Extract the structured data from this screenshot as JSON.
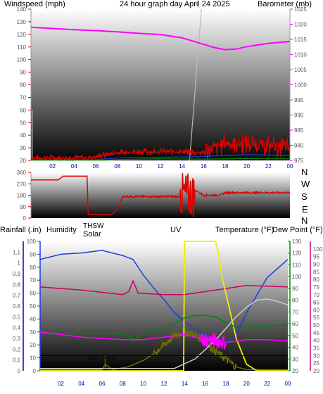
{
  "colors": {
    "wind": "#dd0000",
    "gust": "#dd0000",
    "baro": "#ff00ff",
    "dir": "#dd0000",
    "rain": "#0000cc",
    "hum": "#1a3fdd",
    "thsw": "#cccccc",
    "solar": "#6e6e00",
    "uv": "#eeee00",
    "temp": "#008800",
    "dew": "#cc0066",
    "xtick": "#0000aa"
  },
  "panel1": {
    "title": "24 hour graph day   April 24 2025",
    "left_label": "Windspeed (mph)",
    "right_label": "Barometer (mb)"
  },
  "panel2": {
    "compass": [
      "N",
      "W",
      "S",
      "E",
      "N"
    ]
  },
  "panel3": {
    "labels": {
      "rain": "Rainfall (.in)",
      "hum": "Humidity",
      "thsw": "THSW",
      "solar": "Solar",
      "uv": "UV",
      "temp": "Temperature (°F)",
      "dew": "Dew Point (°F)"
    },
    "annotation": "Sun Rise"
  },
  "chart_data": [
    {
      "type": "line",
      "title": "24 hour graph day   April 24 2025",
      "x_ticks": [
        "02",
        "04",
        "06",
        "08",
        "10",
        "12",
        "14",
        "16",
        "18",
        "20",
        "22",
        "00"
      ],
      "axes": {
        "left": {
          "label": "Windspeed (mph)",
          "ylim": [
            20,
            140
          ],
          "ticks": [
            20,
            30,
            40,
            50,
            60,
            70,
            80,
            90,
            100,
            110,
            120,
            130,
            140
          ]
        },
        "right": {
          "label": "Barometer (mb)",
          "ylim": [
            975,
            1025
          ],
          "ticks": [
            975,
            980,
            985,
            990,
            995,
            1000,
            1005,
            1010,
            1015,
            1020,
            1025
          ]
        }
      },
      "series": [
        {
          "key": "baro",
          "axis": "right",
          "points": [
            [
              0,
              1019
            ],
            [
              2,
              1018.6
            ],
            [
              4,
              1018.2
            ],
            [
              6,
              1017.9
            ],
            [
              8,
              1017.5
            ],
            [
              10,
              1017
            ],
            [
              12,
              1016.6
            ],
            [
              14,
              1015.5
            ],
            [
              16,
              1013.4
            ],
            [
              17,
              1012.3
            ],
            [
              18,
              1011.6
            ],
            [
              19,
              1011.8
            ],
            [
              20,
              1012.6
            ],
            [
              22,
              1013.7
            ],
            [
              24,
              1014.3
            ]
          ]
        },
        {
          "key": "gust",
          "axis": "left",
          "noisy": true,
          "points": [
            [
              0,
              22
            ],
            [
              5,
              22
            ],
            [
              6,
              23
            ],
            [
              8,
              26
            ],
            [
              10,
              27
            ],
            [
              14,
              27
            ],
            [
              16,
              26
            ],
            [
              17,
              30
            ],
            [
              18,
              34
            ],
            [
              20,
              33
            ],
            [
              22,
              32
            ],
            [
              24,
              30
            ]
          ]
        },
        {
          "key": "windavg",
          "axis": "left",
          "color": "#1a3fdd",
          "points": [
            [
              0,
              20.5
            ],
            [
              6,
              20.5
            ],
            [
              8,
              22
            ],
            [
              12,
              22.5
            ],
            [
              16,
              23
            ],
            [
              18,
              24
            ],
            [
              20,
              24.5
            ],
            [
              24,
              24
            ]
          ]
        },
        {
          "key": "windlow",
          "axis": "left",
          "color": "#008800",
          "points": [
            [
              0,
              20.2
            ],
            [
              7,
              20.2
            ],
            [
              8,
              20.8
            ],
            [
              12,
              21.2
            ],
            [
              16,
              21
            ],
            [
              20,
              21.5
            ],
            [
              24,
              21.2
            ]
          ]
        }
      ]
    },
    {
      "type": "line",
      "y_ticks": [
        0,
        90,
        180,
        270,
        360
      ],
      "ylim": [
        0,
        360
      ],
      "series": [
        {
          "key": "dir",
          "points": [
            [
              0,
              300
            ],
            [
              2.5,
              300
            ],
            [
              3,
              330
            ],
            [
              5.2,
              330
            ],
            [
              5.3,
              30
            ],
            [
              7.5,
              30
            ],
            [
              8,
              70
            ],
            [
              8.5,
              170
            ],
            [
              13.5,
              170
            ],
            [
              14,
              160
            ],
            [
              14.5,
              110
            ],
            [
              14.6,
              320
            ],
            [
              14.8,
              10
            ],
            [
              15,
              230
            ],
            [
              16,
              180
            ],
            [
              17.5,
              180
            ],
            [
              18,
              200
            ],
            [
              24,
              200
            ]
          ]
        }
      ]
    },
    {
      "type": "line",
      "axes": {
        "rain": {
          "label": "Rainfall (.in)",
          "ylim": [
            0,
            1.2
          ],
          "ticks": [
            0,
            0.1,
            0.2,
            0.3,
            0.4,
            0.5,
            0.6,
            0.7,
            0.8,
            0.9,
            1,
            1.1
          ]
        },
        "hum": {
          "label": "Humidity",
          "ylim": [
            0,
            100
          ],
          "ticks": [
            0,
            10,
            20,
            30,
            40,
            50,
            60,
            70,
            80,
            90,
            100
          ]
        },
        "temp": {
          "label": "Temperature (°F)",
          "ylim": [
            20,
            130
          ],
          "ticks": [
            20,
            30,
            40,
            50,
            60,
            70,
            80,
            90,
            100,
            110,
            120,
            130
          ]
        },
        "dew": {
          "label": "Dew Point (°F)",
          "ylim": [
            20,
            105
          ],
          "ticks": [
            20,
            25,
            30,
            35,
            40,
            45,
            50,
            55,
            60,
            65,
            70,
            75,
            80,
            85,
            90,
            95,
            100
          ]
        }
      },
      "series": [
        {
          "key": "hum",
          "axis": "hum",
          "points": [
            [
              0,
              86
            ],
            [
              2,
              90
            ],
            [
              4,
              91
            ],
            [
              6,
              93
            ],
            [
              8,
              89
            ],
            [
              9,
              86
            ],
            [
              10,
              74
            ],
            [
              11,
              64
            ],
            [
              12,
              55
            ],
            [
              13,
              45
            ],
            [
              14,
              38
            ],
            [
              15,
              32
            ],
            [
              16,
              28
            ],
            [
              17,
              25
            ],
            [
              18,
              22
            ],
            [
              19,
              28
            ],
            [
              20,
              45
            ],
            [
              22,
              72
            ],
            [
              24,
              86
            ]
          ]
        },
        {
          "key": "dew",
          "axis": "dew",
          "points": [
            [
              0,
              75
            ],
            [
              4,
              73
            ],
            [
              8,
              70
            ],
            [
              8.6,
              72
            ],
            [
              9,
              79
            ],
            [
              9.5,
              71
            ],
            [
              12,
              70
            ],
            [
              14,
              70
            ],
            [
              16,
              72
            ],
            [
              18,
              74
            ],
            [
              20,
              76
            ],
            [
              24,
              75
            ]
          ]
        },
        {
          "key": "solar",
          "axis": "hum",
          "points": [
            [
              0,
              1
            ],
            [
              6,
              1
            ],
            [
              6.3,
              5
            ],
            [
              7,
              1
            ],
            [
              8.5,
              3
            ],
            [
              10,
              8
            ],
            [
              11,
              13
            ],
            [
              12,
              20
            ],
            [
              13,
              27
            ],
            [
              14,
              30
            ],
            [
              15,
              28
            ],
            [
              16,
              22
            ],
            [
              17,
              15
            ],
            [
              18,
              9
            ],
            [
              19,
              3
            ],
            [
              20,
              1
            ],
            [
              24,
              1
            ]
          ]
        },
        {
          "key": "uv",
          "axis": "hum",
          "points": [
            [
              0,
              0
            ],
            [
              13.9,
              0
            ],
            [
              14,
              100
            ],
            [
              17,
              100
            ],
            [
              17.3,
              90
            ],
            [
              17.6,
              73
            ],
            [
              18,
              60
            ],
            [
              19,
              25
            ],
            [
              20,
              5
            ],
            [
              21,
              0
            ],
            [
              24,
              0
            ]
          ]
        },
        {
          "key": "temp",
          "axis": "temp",
          "points": [
            [
              0,
              52
            ],
            [
              6,
              52
            ],
            [
              8,
              51
            ],
            [
              8.7,
              49
            ],
            [
              9,
              45
            ],
            [
              9.5,
              49
            ],
            [
              10,
              52
            ],
            [
              12,
              56
            ],
            [
              13,
              60
            ],
            [
              14,
              65
            ],
            [
              15,
              67
            ],
            [
              16,
              67
            ],
            [
              17,
              66
            ],
            [
              18,
              61
            ],
            [
              19,
              57
            ],
            [
              20,
              57
            ],
            [
              22,
              58
            ],
            [
              24,
              59
            ]
          ]
        },
        {
          "key": "thsw",
          "axis": "temp",
          "points": [
            [
              0,
              22
            ],
            [
              13,
              22
            ],
            [
              14,
              26
            ],
            [
              15,
              30
            ],
            [
              16,
              38
            ],
            [
              17,
              46
            ],
            [
              18,
              56
            ],
            [
              19,
              66
            ],
            [
              20,
              74
            ],
            [
              21,
              80
            ],
            [
              22,
              81
            ],
            [
              23,
              79
            ],
            [
              24,
              76
            ]
          ]
        },
        {
          "key": "lowmag",
          "axis": "hum",
          "color": "#ff00ff",
          "points": [
            [
              0,
              30
            ],
            [
              4,
              26
            ],
            [
              8,
              24
            ],
            [
              10,
              24
            ],
            [
              12,
              26
            ],
            [
              14,
              28
            ],
            [
              16,
              24
            ],
            [
              18,
              22
            ],
            [
              20,
              24
            ],
            [
              22,
              24
            ],
            [
              24,
              23
            ]
          ]
        },
        {
          "key": "rainline",
          "axis": "rain",
          "points": [
            [
              0,
              0.14
            ],
            [
              24,
              0.14
            ]
          ]
        }
      ]
    }
  ]
}
